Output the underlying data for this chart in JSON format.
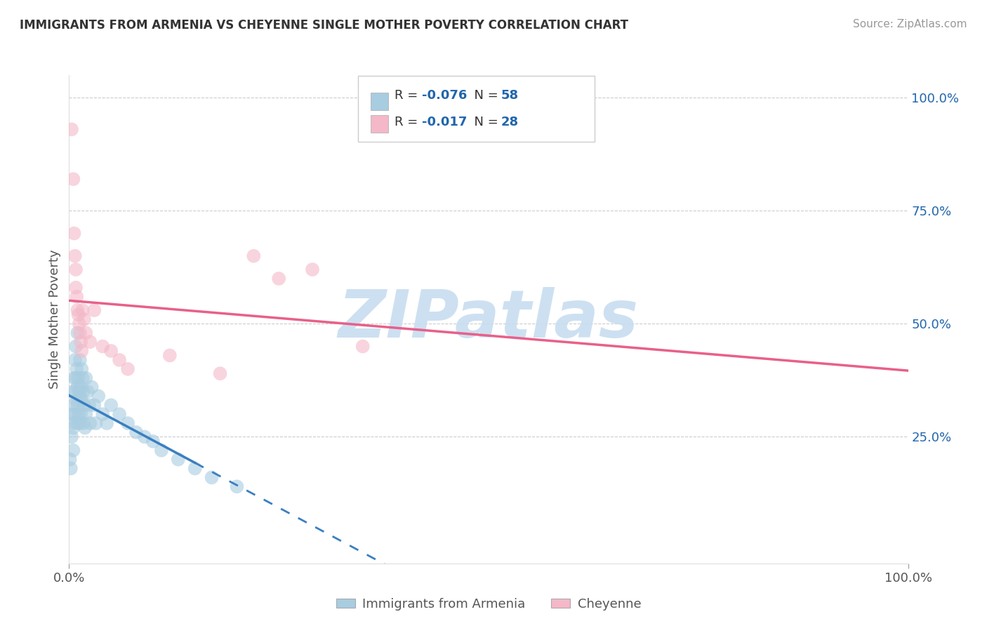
{
  "title": "IMMIGRANTS FROM ARMENIA VS CHEYENNE SINGLE MOTHER POVERTY CORRELATION CHART",
  "source": "Source: ZipAtlas.com",
  "ylabel": "Single Mother Poverty",
  "legend1_label_r": "R = ",
  "legend1_r_val": "-0.076",
  "legend1_n": "  N = ",
  "legend1_n_val": "58",
  "legend2_label_r": "R = ",
  "legend2_r_val": "-0.017",
  "legend2_n": "  N = ",
  "legend2_n_val": "28",
  "legend_bottom1": "Immigrants from Armenia",
  "legend_bottom2": "Cheyenne",
  "blue_color": "#a8cce0",
  "pink_color": "#f4b8c8",
  "blue_line_color": "#3a7fc1",
  "pink_line_color": "#e8608a",
  "background_color": "#ffffff",
  "grid_color": "#cccccc",
  "blue_x": [
    0.001,
    0.002,
    0.003,
    0.003,
    0.004,
    0.004,
    0.005,
    0.005,
    0.005,
    0.006,
    0.006,
    0.007,
    0.007,
    0.008,
    0.008,
    0.009,
    0.009,
    0.009,
    0.01,
    0.01,
    0.01,
    0.011,
    0.011,
    0.012,
    0.012,
    0.013,
    0.013,
    0.014,
    0.014,
    0.015,
    0.015,
    0.016,
    0.017,
    0.017,
    0.018,
    0.019,
    0.02,
    0.02,
    0.022,
    0.024,
    0.025,
    0.027,
    0.03,
    0.032,
    0.035,
    0.04,
    0.045,
    0.05,
    0.06,
    0.07,
    0.08,
    0.09,
    0.1,
    0.11,
    0.13,
    0.15,
    0.17,
    0.2
  ],
  "blue_y": [
    0.2,
    0.18,
    0.3,
    0.25,
    0.35,
    0.28,
    0.32,
    0.22,
    0.27,
    0.38,
    0.3,
    0.42,
    0.35,
    0.45,
    0.38,
    0.4,
    0.33,
    0.28,
    0.36,
    0.32,
    0.48,
    0.38,
    0.3,
    0.35,
    0.28,
    0.42,
    0.34,
    0.36,
    0.3,
    0.4,
    0.33,
    0.38,
    0.35,
    0.28,
    0.32,
    0.27,
    0.38,
    0.3,
    0.35,
    0.32,
    0.28,
    0.36,
    0.32,
    0.28,
    0.34,
    0.3,
    0.28,
    0.32,
    0.3,
    0.28,
    0.26,
    0.25,
    0.24,
    0.22,
    0.2,
    0.18,
    0.16,
    0.14
  ],
  "pink_x": [
    0.003,
    0.005,
    0.006,
    0.007,
    0.008,
    0.008,
    0.009,
    0.01,
    0.011,
    0.012,
    0.013,
    0.014,
    0.015,
    0.016,
    0.018,
    0.02,
    0.025,
    0.03,
    0.04,
    0.05,
    0.06,
    0.07,
    0.12,
    0.18,
    0.22,
    0.25,
    0.29,
    0.35
  ],
  "pink_y": [
    0.93,
    0.82,
    0.7,
    0.65,
    0.62,
    0.58,
    0.56,
    0.53,
    0.52,
    0.5,
    0.48,
    0.46,
    0.44,
    0.53,
    0.51,
    0.48,
    0.46,
    0.53,
    0.45,
    0.44,
    0.42,
    0.4,
    0.43,
    0.39,
    0.65,
    0.6,
    0.62,
    0.45
  ],
  "xlim": [
    0.0,
    1.0
  ],
  "ylim": [
    -0.03,
    1.05
  ],
  "yticks": [
    0.0,
    0.25,
    0.5,
    0.75,
    1.0
  ],
  "ytick_labels_right": [
    "",
    "25.0%",
    "50.0%",
    "75.0%",
    "100.0%"
  ],
  "xtick_vals": [
    0.0,
    1.0
  ],
  "xtick_labels": [
    "0.0%",
    "100.0%"
  ],
  "watermark": "ZIPatlas",
  "watermark_color": "#c8ddf0",
  "text_color": "#555555",
  "blue_number_color": "#2166ac",
  "source_color": "#999999"
}
